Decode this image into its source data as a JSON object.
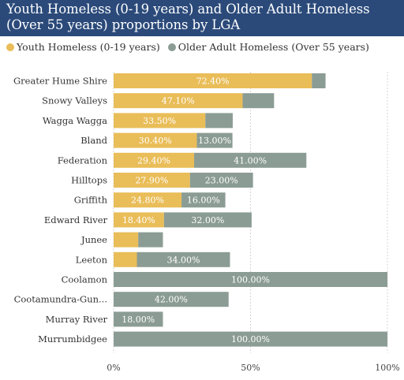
{
  "header": {
    "title_line1": "Youth Homeless (0-19 years) and Older Adult Homeless",
    "title_line2": "(Over 55 years) proportions by LGA"
  },
  "colors": {
    "header_bg": "#2b4a7a",
    "youth": "#e9bd58",
    "older": "#8b9c94",
    "grid": "#d4d4d4"
  },
  "chart_data": {
    "type": "bar",
    "orientation": "horizontal",
    "stacked": true,
    "title": "Youth Homeless (0-19 years) and Older Adult Homeless (Over 55 years) proportions by LGA",
    "categories": [
      "Greater Hume Shire",
      "Snowy Valleys",
      "Wagga Wagga",
      "Bland",
      "Federation",
      "Hilltops",
      "Griffith",
      "Edward River",
      "Junee",
      "Leeton",
      "Coolamon",
      "Cootamundra-Gun...",
      "Murray River",
      "Murrumbidgee"
    ],
    "series": [
      {
        "name": "Youth Homeless (0-19 years)",
        "values": [
          72.4,
          47.1,
          33.5,
          30.4,
          29.4,
          27.9,
          24.8,
          18.4,
          9,
          8.5,
          0,
          0,
          0,
          0
        ],
        "labels": [
          "72.40%",
          "47.10%",
          "33.50%",
          "30.40%",
          "29.40%",
          "27.90%",
          "24.80%",
          "18.40%",
          "",
          "",
          "",
          "",
          "",
          ""
        ]
      },
      {
        "name": "Older Adult Homeless (Over 55 years)",
        "values": [
          5,
          11.5,
          10,
          13,
          41,
          23,
          16,
          32,
          9,
          34,
          100,
          42,
          18,
          100
        ],
        "labels": [
          "",
          "",
          "",
          "13.00%",
          "41.00%",
          "23.00%",
          "16.00%",
          "32.00%",
          "",
          "34.00%",
          "100.00%",
          "42.00%",
          "18.00%",
          "100.00%"
        ]
      }
    ],
    "xlim": [
      0,
      100
    ],
    "xticks": [
      0,
      50,
      100
    ],
    "xtick_labels": [
      "0%",
      "50%",
      "100%"
    ],
    "legend_position": "top-left",
    "grid": true
  }
}
